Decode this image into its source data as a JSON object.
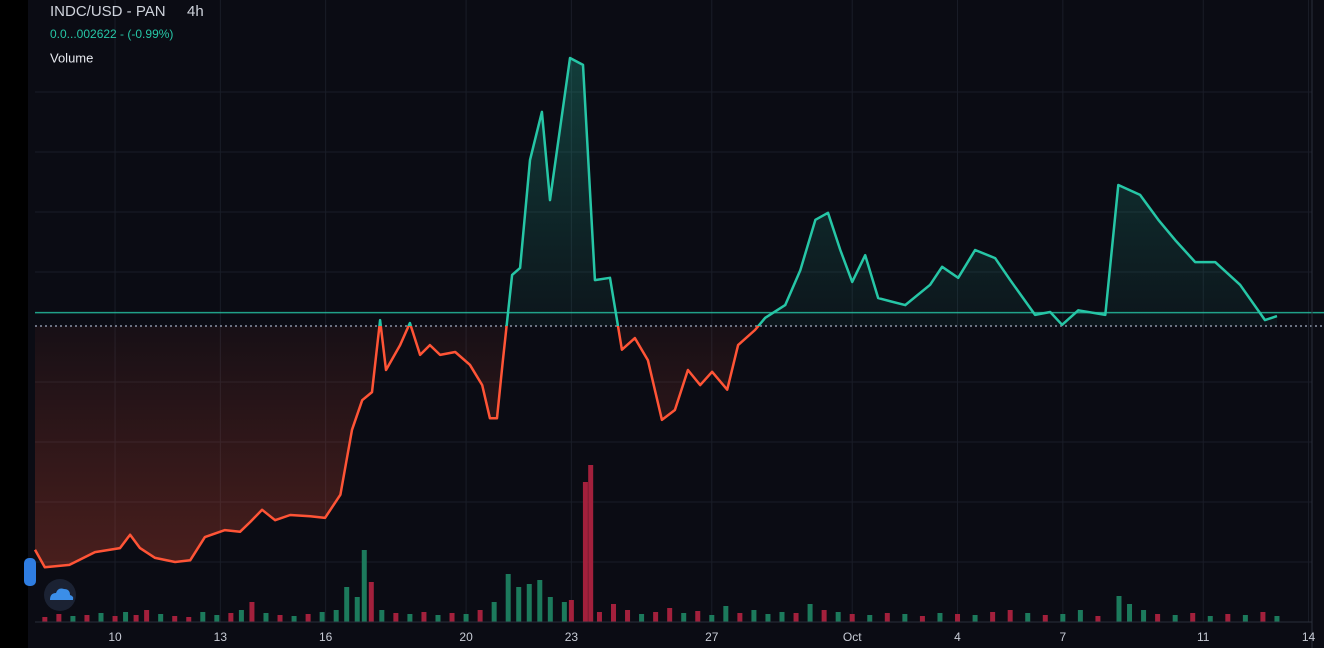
{
  "chart_data": {
    "type": "baseline",
    "title": "INDC/USD - PAN",
    "interval": "4h",
    "subtitle": "0.0...002622 - (-0.99%)",
    "volume_label": "Volume",
    "up_color": "#26c6a6",
    "down_color": "#ff5436",
    "baseline": 50.7,
    "price_line": 53,
    "xlim": [
      7.72,
      44.44
    ],
    "ylim": [
      0,
      100
    ],
    "xticks": [
      10,
      13,
      16,
      20,
      23,
      27,
      {
        "value": 31,
        "label": "Oct"
      },
      {
        "value": 34,
        "label": "4"
      },
      {
        "value": 37,
        "label": "7"
      },
      {
        "value": 41,
        "label": "11"
      },
      {
        "value": 44,
        "label": "14"
      }
    ],
    "grid": true,
    "x": [
      7.72,
      8.0,
      8.7,
      9.43,
      10.14,
      10.43,
      10.71,
      11.14,
      11.71,
      12.14,
      12.56,
      13.13,
      13.56,
      13.85,
      14.19,
      14.56,
      14.99,
      15.56,
      15.98,
      16.42,
      16.75,
      17.04,
      17.32,
      17.55,
      17.72,
      18.12,
      18.4,
      18.69,
      18.97,
      19.26,
      19.69,
      20.11,
      20.46,
      20.68,
      20.88,
      21.05,
      21.31,
      21.54,
      21.82,
      22.16,
      22.39,
      22.59,
      22.96,
      23.33,
      23.67,
      24.1,
      24.44,
      24.81,
      25.18,
      25.58,
      25.95,
      26.32,
      26.67,
      27.01,
      27.44,
      27.75,
      28.23,
      28.52,
      29.09,
      29.52,
      29.95,
      30.31,
      30.66,
      31.0,
      31.37,
      31.74,
      32.51,
      33.22,
      33.56,
      34.02,
      34.5,
      35.07,
      35.5,
      36.21,
      36.64,
      36.98,
      37.44,
      38.21,
      38.58,
      39.2,
      39.72,
      40.2,
      40.77,
      41.34,
      42.05,
      42.76,
      43.1
    ],
    "values": [
      12.1,
      9.1,
      9.5,
      11.7,
      12.4,
      14.7,
      12.4,
      10.7,
      10.0,
      10.3,
      14.3,
      15.5,
      15.2,
      16.9,
      19.0,
      17.2,
      18.1,
      17.9,
      17.6,
      21.6,
      32.8,
      37.9,
      39.3,
      51.7,
      43.1,
      47.4,
      51.2,
      45.7,
      47.4,
      45.7,
      46.2,
      44.0,
      40.5,
      34.8,
      34.8,
      44.8,
      59.5,
      60.7,
      79.3,
      87.6,
      72.4,
      81.0,
      96.9,
      95.7,
      58.6,
      59.0,
      46.6,
      48.6,
      44.8,
      34.5,
      36.2,
      43.1,
      40.5,
      42.8,
      39.7,
      47.4,
      50.0,
      52.1,
      54.3,
      60.3,
      69.0,
      70.2,
      63.8,
      58.3,
      62.9,
      55.5,
      54.3,
      57.8,
      60.9,
      59.0,
      63.8,
      62.4,
      58.6,
      52.6,
      53.1,
      50.9,
      53.4,
      52.6,
      75.0,
      73.3,
      69.0,
      65.5,
      61.7,
      61.7,
      57.8,
      51.7,
      52.4
    ],
    "volume": {
      "vlim": [
        0,
        200
      ],
      "x": [
        8.0,
        8.4,
        8.8,
        9.2,
        9.6,
        10.0,
        10.3,
        10.6,
        10.9,
        11.3,
        11.7,
        12.1,
        12.5,
        12.9,
        13.3,
        13.6,
        13.9,
        14.3,
        14.7,
        15.1,
        15.5,
        15.9,
        16.3,
        16.6,
        16.9,
        17.1,
        17.3,
        17.6,
        18.0,
        18.4,
        18.8,
        19.2,
        19.6,
        20.0,
        20.4,
        20.8,
        21.2,
        21.5,
        21.8,
        22.1,
        22.4,
        22.8,
        23.0,
        23.4,
        23.55,
        23.8,
        24.2,
        24.6,
        25.0,
        25.4,
        25.8,
        26.2,
        26.6,
        27.0,
        27.4,
        27.8,
        28.2,
        28.6,
        29.0,
        29.4,
        29.8,
        30.2,
        30.6,
        31.0,
        31.5,
        32.0,
        32.5,
        33.0,
        33.5,
        34.0,
        34.5,
        35.0,
        35.5,
        36.0,
        36.5,
        37.0,
        37.5,
        38.0,
        38.6,
        38.9,
        39.3,
        39.7,
        40.2,
        40.7,
        41.2,
        41.7,
        42.2,
        42.7,
        43.1
      ],
      "values": [
        5,
        8,
        6,
        7,
        9,
        6,
        10,
        7,
        12,
        8,
        6,
        5,
        10,
        7,
        9,
        12,
        20,
        9,
        7,
        6,
        8,
        10,
        12,
        35,
        25,
        72,
        40,
        12,
        9,
        8,
        10,
        7,
        9,
        8,
        12,
        20,
        48,
        35,
        38,
        42,
        25,
        20,
        22,
        140,
        157,
        10,
        18,
        12,
        8,
        10,
        14,
        9,
        11,
        7,
        16,
        9,
        12,
        8,
        10,
        9,
        18,
        12,
        10,
        8,
        7,
        9,
        8,
        6,
        9,
        8,
        7,
        10,
        12,
        9,
        7,
        8,
        12,
        6,
        26,
        18,
        12,
        8,
        7,
        9,
        6,
        8,
        7,
        10,
        6
      ],
      "colors": [
        "#a3203c",
        "#a3203c",
        "#1c7a5c",
        "#a3203c",
        "#1c7a5c",
        "#a3203c",
        "#1c7a5c",
        "#a3203c",
        "#a3203c",
        "#1c7a5c",
        "#a3203c",
        "#a3203c",
        "#1c7a5c",
        "#1c7a5c",
        "#a3203c",
        "#1c7a5c",
        "#a3203c",
        "#1c7a5c",
        "#a3203c",
        "#1c7a5c",
        "#a3203c",
        "#1c7a5c",
        "#1c7a5c",
        "#1c7a5c",
        "#1c7a5c",
        "#1c7a5c",
        "#a3203c",
        "#1c7a5c",
        "#a3203c",
        "#1c7a5c",
        "#a3203c",
        "#1c7a5c",
        "#a3203c",
        "#1c7a5c",
        "#a3203c",
        "#1c7a5c",
        "#1c7a5c",
        "#1c7a5c",
        "#1c7a5c",
        "#1c7a5c",
        "#1c7a5c",
        "#1c7a5c",
        "#a3203c",
        "#a3203c",
        "#a3203c",
        "#a3203c",
        "#a3203c",
        "#a3203c",
        "#1c7a5c",
        "#a3203c",
        "#a3203c",
        "#1c7a5c",
        "#a3203c",
        "#1c7a5c",
        "#1c7a5c",
        "#a3203c",
        "#1c7a5c",
        "#1c7a5c",
        "#1c7a5c",
        "#a3203c",
        "#1c7a5c",
        "#a3203c",
        "#1c7a5c",
        "#a3203c",
        "#1c7a5c",
        "#a3203c",
        "#1c7a5c",
        "#a3203c",
        "#1c7a5c",
        "#a3203c",
        "#1c7a5c",
        "#a3203c",
        "#a3203c",
        "#1c7a5c",
        "#a3203c",
        "#1c7a5c",
        "#1c7a5c",
        "#a3203c",
        "#1c7a5c",
        "#1c7a5c",
        "#1c7a5c",
        "#a3203c",
        "#1c7a5c",
        "#a3203c",
        "#1c7a5c",
        "#a3203c",
        "#1c7a5c",
        "#a3203c",
        "#1c7a5c"
      ]
    }
  }
}
